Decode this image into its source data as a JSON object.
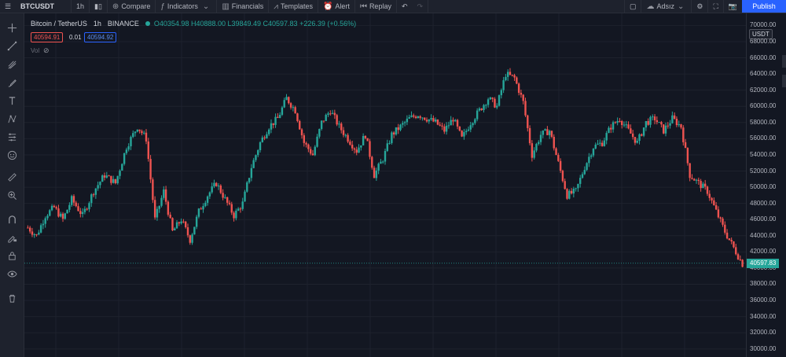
{
  "toolbar": {
    "symbol": "BTCUSDT",
    "interval": "1h",
    "compare": "Compare",
    "indicators": "Indicators",
    "financials": "Financials",
    "templates": "Templates",
    "alert": "Alert",
    "replay": "Replay",
    "layout_name": "Adsız",
    "publish": "Publish"
  },
  "legend": {
    "title": "Bitcoin / TetherUS",
    "interval": "1h",
    "exchange": "BINANCE",
    "ohlc": "O40354.98 H40888.00 L39849.49 C40597.83 +226.39 (+0.56%)",
    "bid": "40594.91",
    "spread": "0.01",
    "ask": "40594.92",
    "vol_label": "Vol"
  },
  "colors": {
    "up": "#26a69a",
    "down": "#ef5350",
    "bg": "#131722",
    "accent": "#2962ff"
  },
  "left_tools": [
    "crosshair-icon",
    "trend-line-icon",
    "pitchfork-icon",
    "brush-icon",
    "text-icon",
    "pattern-icon",
    "forecast-icon",
    "emoji-icon",
    "ruler-icon",
    "zoom-icon",
    "magnet-icon",
    "lock-drawing-icon",
    "lock-icon",
    "eye-icon",
    "trash-icon"
  ],
  "chart_data": {
    "type": "candlestick",
    "symbol": "Bitcoin / TetherUS",
    "exchange": "BINANCE",
    "interval": "1h",
    "quote_currency": "USDT",
    "last_price": "40597.83",
    "y_ticks": [
      "70000.00",
      "68000.00",
      "66000.00",
      "64000.00",
      "62000.00",
      "60000.00",
      "58000.00",
      "56000.00",
      "54000.00",
      "52000.00",
      "50000.00",
      "48000.00",
      "46000.00",
      "44000.00",
      "42000.00",
      "40000.00",
      "38000.00",
      "36000.00",
      "34000.00",
      "32000.00",
      "30000.00"
    ],
    "ylim": [
      29000,
      71500
    ],
    "grid": true,
    "close_path": [
      [
        0,
        45000
      ],
      [
        4,
        44000
      ],
      [
        8,
        46500
      ],
      [
        12,
        47500
      ],
      [
        16,
        46000
      ],
      [
        20,
        48500
      ],
      [
        25,
        46500
      ],
      [
        30,
        49500
      ],
      [
        35,
        51500
      ],
      [
        40,
        50500
      ],
      [
        45,
        55000
      ],
      [
        50,
        57500
      ],
      [
        54,
        56000
      ],
      [
        58,
        46000
      ],
      [
        62,
        49500
      ],
      [
        66,
        44500
      ],
      [
        70,
        46000
      ],
      [
        74,
        43500
      ],
      [
        78,
        47000
      ],
      [
        82,
        49000
      ],
      [
        86,
        50500
      ],
      [
        90,
        48500
      ],
      [
        94,
        46500
      ],
      [
        98,
        48000
      ],
      [
        102,
        52500
      ],
      [
        106,
        55500
      ],
      [
        110,
        57500
      ],
      [
        114,
        58500
      ],
      [
        118,
        61000
      ],
      [
        122,
        59500
      ],
      [
        126,
        55500
      ],
      [
        130,
        54000
      ],
      [
        134,
        58000
      ],
      [
        138,
        59500
      ],
      [
        142,
        57500
      ],
      [
        146,
        56000
      ],
      [
        150,
        54500
      ],
      [
        154,
        56500
      ],
      [
        158,
        51500
      ],
      [
        162,
        53500
      ],
      [
        166,
        56500
      ],
      [
        170,
        57500
      ],
      [
        174,
        58500
      ],
      [
        178,
        59000
      ],
      [
        182,
        58500
      ],
      [
        186,
        58000
      ],
      [
        190,
        57000
      ],
      [
        194,
        58500
      ],
      [
        198,
        56000
      ],
      [
        202,
        58000
      ],
      [
        206,
        59500
      ],
      [
        210,
        61000
      ],
      [
        214,
        60000
      ],
      [
        218,
        64000
      ],
      [
        222,
        63500
      ],
      [
        226,
        60500
      ],
      [
        230,
        54000
      ],
      [
        234,
        56500
      ],
      [
        238,
        57000
      ],
      [
        242,
        53000
      ],
      [
        246,
        49000
      ],
      [
        250,
        49500
      ],
      [
        254,
        52500
      ],
      [
        258,
        55000
      ],
      [
        262,
        55500
      ],
      [
        266,
        57500
      ],
      [
        270,
        58500
      ],
      [
        274,
        57000
      ],
      [
        278,
        55500
      ],
      [
        282,
        58000
      ],
      [
        286,
        58500
      ],
      [
        290,
        57000
      ],
      [
        294,
        58500
      ],
      [
        298,
        57500
      ],
      [
        302,
        51500
      ],
      [
        306,
        50500
      ],
      [
        310,
        49500
      ],
      [
        314,
        47000
      ],
      [
        318,
        44500
      ],
      [
        322,
        42500
      ],
      [
        326,
        40500
      ]
    ]
  }
}
